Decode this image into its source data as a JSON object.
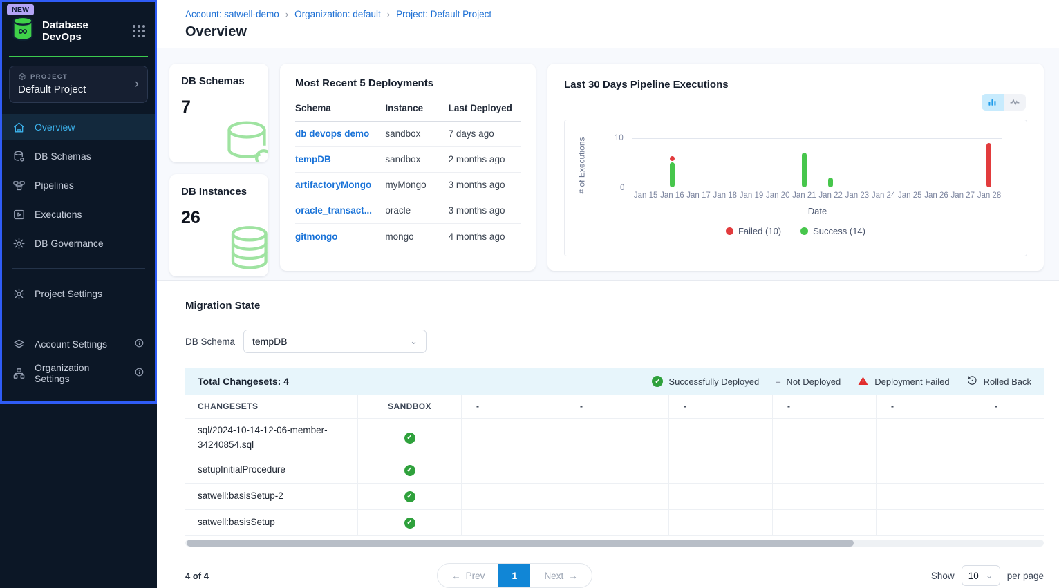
{
  "app": {
    "name": "Database DevOps",
    "new_badge": "NEW"
  },
  "glyphs": {
    "chevron_right": "›",
    "chevron_down": "⌄",
    "arrow_left": "←",
    "arrow_right": "→",
    "dash": "–",
    "rollback": "↺",
    "check": "✓",
    "breadcrumb_sep": "›",
    "infinity": "∞"
  },
  "colors": {
    "accent_blue": "#2f5cf6",
    "brand_green": "#3dcb4e",
    "active_nav_cyan": "#3cb4ee",
    "link_blue": "#1a73d8",
    "success_green": "#47c64c",
    "failed_red": "#e23b3d",
    "page_button_blue": "#1186d6"
  },
  "sidebar": {
    "project_label": "PROJECT",
    "project_name": "Default Project",
    "nav": [
      {
        "label": "Overview",
        "icon": "home-icon",
        "active": true
      },
      {
        "label": "DB Schemas",
        "icon": "database-icon",
        "active": false
      },
      {
        "label": "Pipelines",
        "icon": "pipeline-icon",
        "active": false
      },
      {
        "label": "Executions",
        "icon": "executions-icon",
        "active": false
      },
      {
        "label": "DB Governance",
        "icon": "gear-icon",
        "active": false
      }
    ],
    "nav2": [
      {
        "label": "Project Settings",
        "icon": "gear-icon"
      }
    ],
    "nav3": [
      {
        "label": "Account Settings",
        "icon": "layers-icon",
        "info": true
      },
      {
        "label": "Organization Settings",
        "icon": "org-icon",
        "info": true
      }
    ]
  },
  "breadcrumb": {
    "account": "Account: satwell-demo",
    "organization": "Organization: default",
    "project": "Project: Default Project"
  },
  "page_title": "Overview",
  "stats": {
    "schemas_label": "DB Schemas",
    "schemas_value": "7",
    "instances_label": "DB Instances",
    "instances_value": "26"
  },
  "deployments": {
    "title": "Most Recent 5 Deployments",
    "columns": [
      "Schema",
      "Instance",
      "Last Deployed"
    ],
    "rows": [
      {
        "schema": "db devops demo",
        "instance": "sandbox",
        "last_deployed": "7 days ago"
      },
      {
        "schema": "tempDB",
        "instance": "sandbox",
        "last_deployed": "2 months ago"
      },
      {
        "schema": "artifactoryMongo",
        "instance": "myMongo",
        "last_deployed": "3 months ago"
      },
      {
        "schema": "oracle_transact...",
        "instance": "oracle",
        "last_deployed": "3 months ago"
      },
      {
        "schema": "gitmongo",
        "instance": "mongo",
        "last_deployed": "4 months ago"
      }
    ]
  },
  "chart_data": {
    "type": "bar",
    "stacked": true,
    "title": "Last 30 Days Pipeline Executions",
    "categories": [
      "Jan 15",
      "Jan 16",
      "Jan 17",
      "Jan 18",
      "Jan 19",
      "Jan 20",
      "Jan 21",
      "Jan 22",
      "Jan 23",
      "Jan 24",
      "Jan 25",
      "Jan 26",
      "Jan 27",
      "Jan 28"
    ],
    "series": [
      {
        "name": "Success",
        "color": "#47c64c",
        "values": [
          0,
          5,
          0,
          0,
          0,
          0,
          7,
          2,
          0,
          0,
          0,
          0,
          0,
          0
        ]
      },
      {
        "name": "Failed",
        "color": "#e23b3d",
        "values": [
          0,
          1,
          0,
          0,
          0,
          0,
          0,
          0,
          0,
          0,
          0,
          0,
          0,
          9
        ]
      }
    ],
    "legend": [
      {
        "label": "Failed (10)",
        "color": "#e23b3d"
      },
      {
        "label": "Success (14)",
        "color": "#47c64c"
      }
    ],
    "legend_position": "bottom",
    "grid": true,
    "xlabel": "Date",
    "ylabel": "# of Executions",
    "ylim": [
      0,
      10
    ],
    "yticks": [
      "0",
      "10"
    ]
  },
  "migration": {
    "title": "Migration State",
    "schema_label": "DB Schema",
    "schema_value": "tempDB",
    "total_label": "Total Changesets: 4",
    "status_legend": [
      {
        "label": "Successfully Deployed",
        "icon": "success-check-icon"
      },
      {
        "label": "Not Deployed",
        "icon": "dash-icon"
      },
      {
        "label": "Deployment Failed",
        "icon": "warning-triangle-icon"
      },
      {
        "label": "Rolled Back",
        "icon": "rollback-icon"
      }
    ],
    "columns": [
      "CHANGESETS",
      "SANDBOX",
      "-",
      "-",
      "-",
      "-",
      "-",
      "-"
    ],
    "rows": [
      {
        "name": "sql/2024-10-14-12-06-member-34240854.sql",
        "sandbox": "success"
      },
      {
        "name": "setupInitialProcedure",
        "sandbox": "success"
      },
      {
        "name": "satwell:basisSetup-2",
        "sandbox": "success"
      },
      {
        "name": "satwell:basisSetup",
        "sandbox": "success"
      }
    ]
  },
  "pagination": {
    "count": "4 of 4",
    "prev": "Prev",
    "page": "1",
    "next": "Next",
    "show_label": "Show",
    "page_size": "10",
    "per_page_label": "per page"
  }
}
